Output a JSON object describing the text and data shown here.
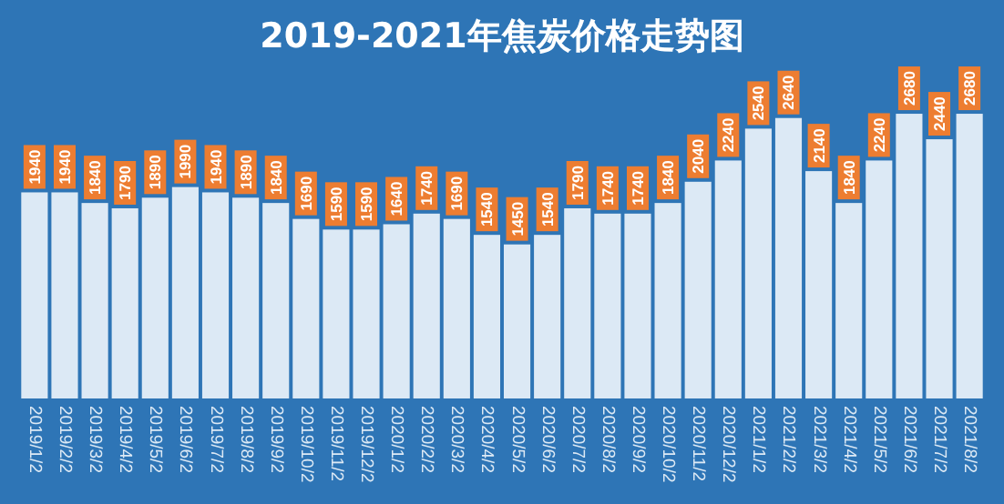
{
  "chart_data": {
    "type": "bar",
    "title": "2019-2021年焦炭价格走势图",
    "categories": [
      "2019/1/2",
      "2019/2/2",
      "2019/3/2",
      "2019/4/2",
      "2019/5/2",
      "2019/6/2",
      "2019/7/2",
      "2019/8/2",
      "2019/9/2",
      "2019/10/2",
      "2019/11/2",
      "2019/12/2",
      "2020/1/2",
      "2020/2/2",
      "2020/3/2",
      "2020/4/2",
      "2020/5/2",
      "2020/6/2",
      "2020/7/2",
      "2020/8/2",
      "2020/9/2",
      "2020/10/2",
      "2020/11/2",
      "2020/12/2",
      "2021/1/2",
      "2021/2/2",
      "2021/3/2",
      "2021/4/2",
      "2021/5/2",
      "2021/6/2",
      "2021/7/2",
      "2021/8/2"
    ],
    "values": [
      1940,
      1940,
      1840,
      1790,
      1890,
      1990,
      1940,
      1890,
      1840,
      1690,
      1590,
      1590,
      1640,
      1740,
      1690,
      1540,
      1450,
      1540,
      1790,
      1740,
      1740,
      1840,
      2040,
      2240,
      2540,
      2640,
      2140,
      1840,
      2240,
      2680,
      2440,
      2680
    ],
    "color": "#dce9f5",
    "data_labels": true,
    "tick_labels": "x",
    "ylim": [
      0,
      3100
    ]
  }
}
